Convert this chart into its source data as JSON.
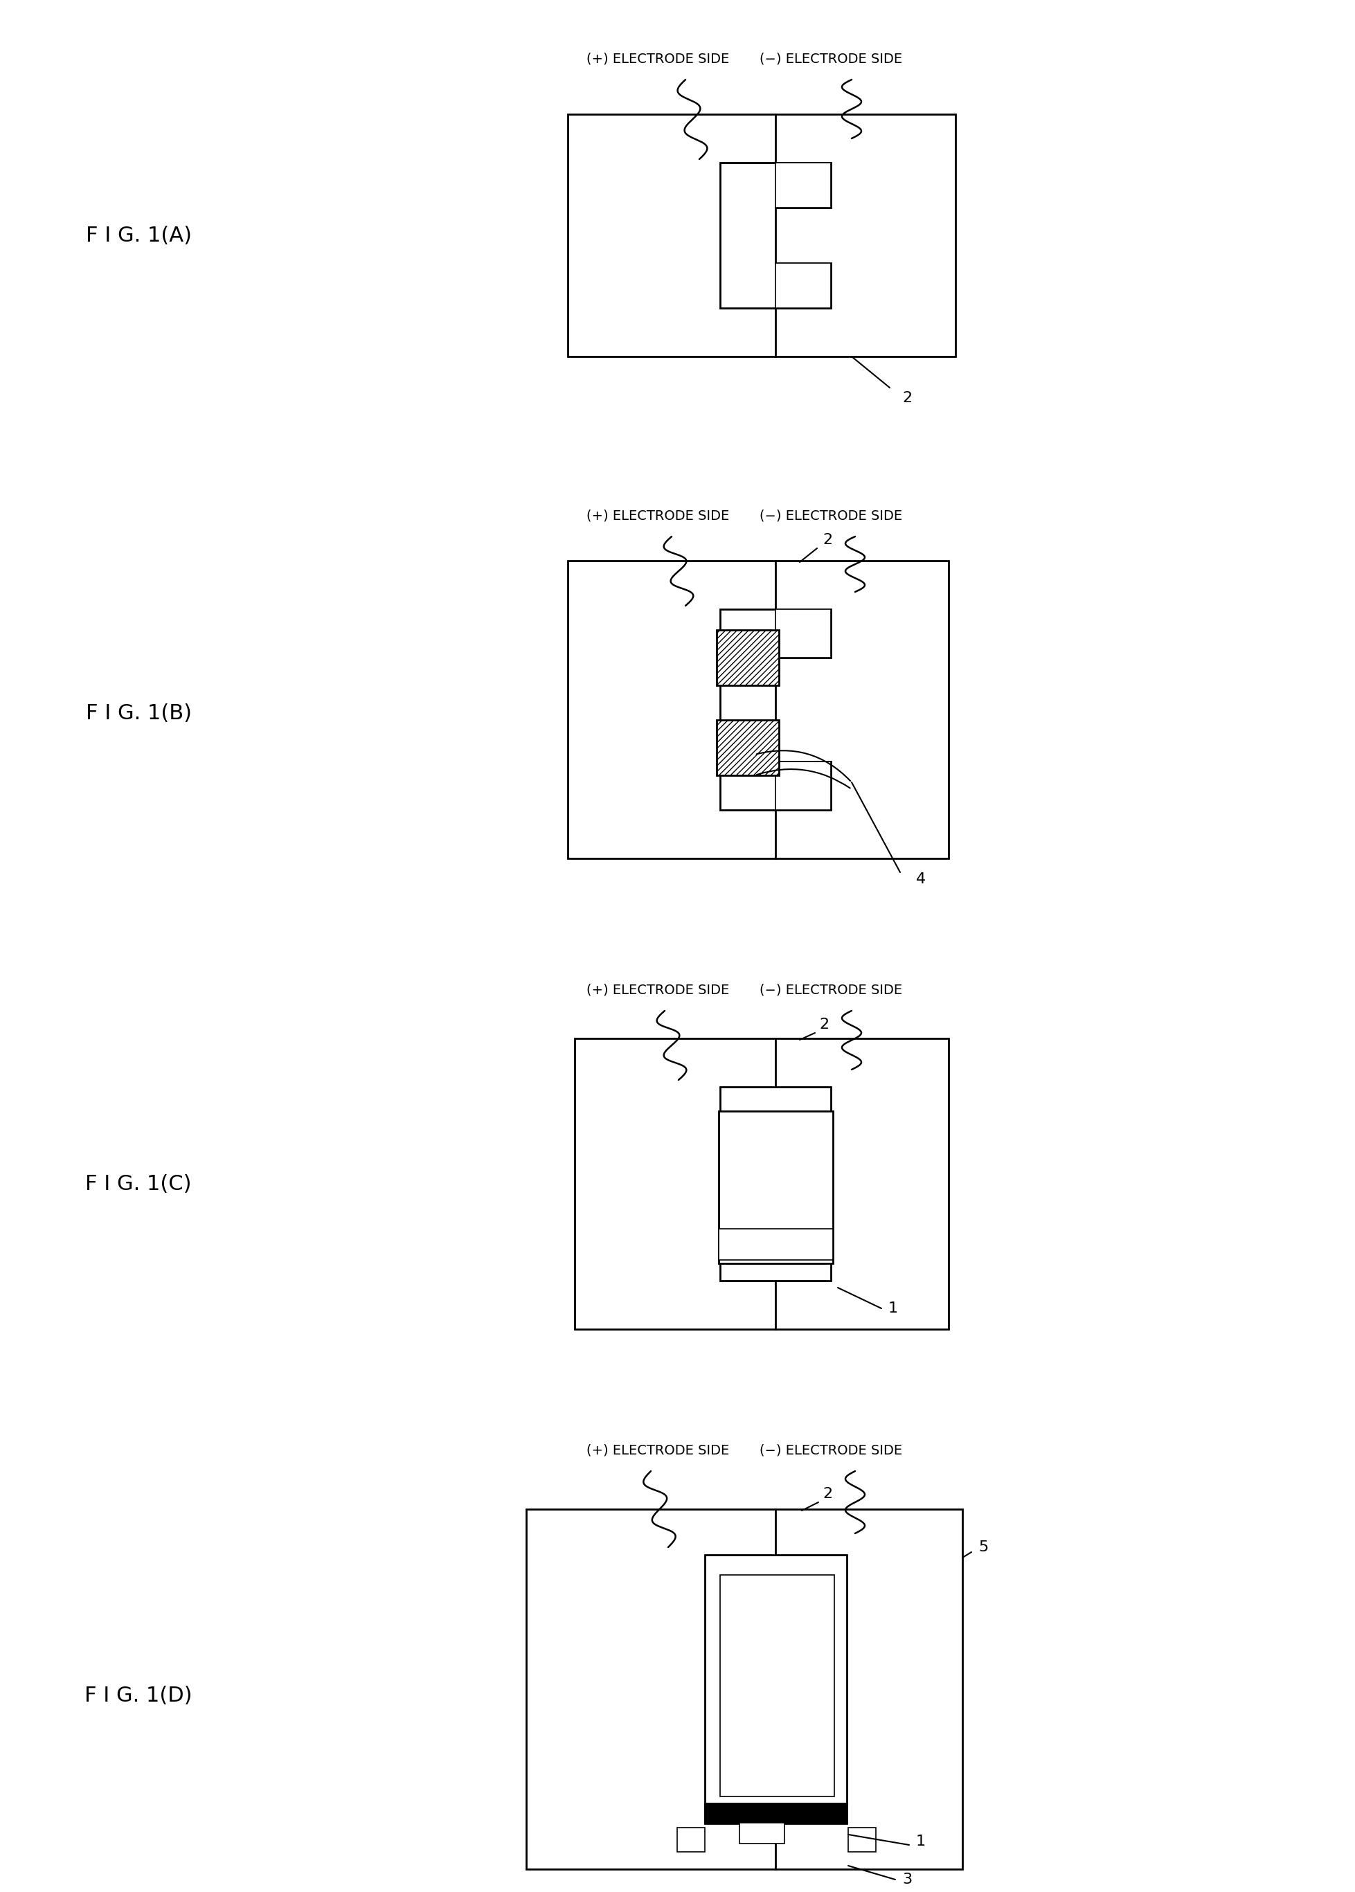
{
  "background_color": "#ffffff",
  "line_color": "#000000",
  "lw": 2.0,
  "tlw": 1.2,
  "fig_label_fontsize": 22,
  "electrode_fontsize": 14,
  "ref_fontsize": 16,
  "electrode_label_plus": "(+) ELECTRODE SIDE",
  "electrode_label_minus": "(−) ELECTRODE SIDE",
  "fig_labels": [
    "F I G. 1(A)",
    "F I G. 1(B)",
    "F I G. 1(C)",
    "F I G. 1(D)"
  ]
}
